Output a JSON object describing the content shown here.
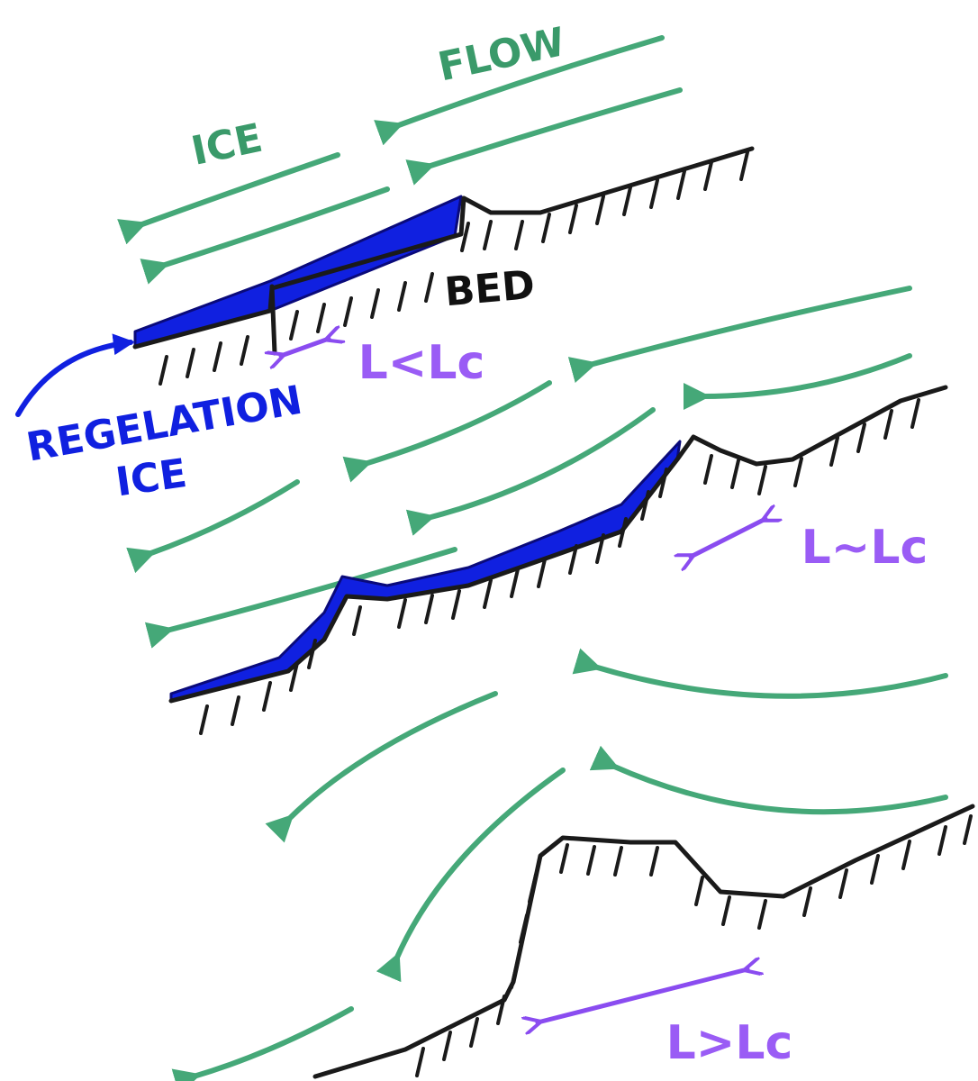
{
  "labels": {
    "flow": "FLOW",
    "ice": "ICE",
    "bed": "BED",
    "regelation": "REGELATION",
    "regelation_ice": "ICE"
  },
  "scales": [
    "L<Lc",
    "L~Lc",
    "L>Lc"
  ]
}
